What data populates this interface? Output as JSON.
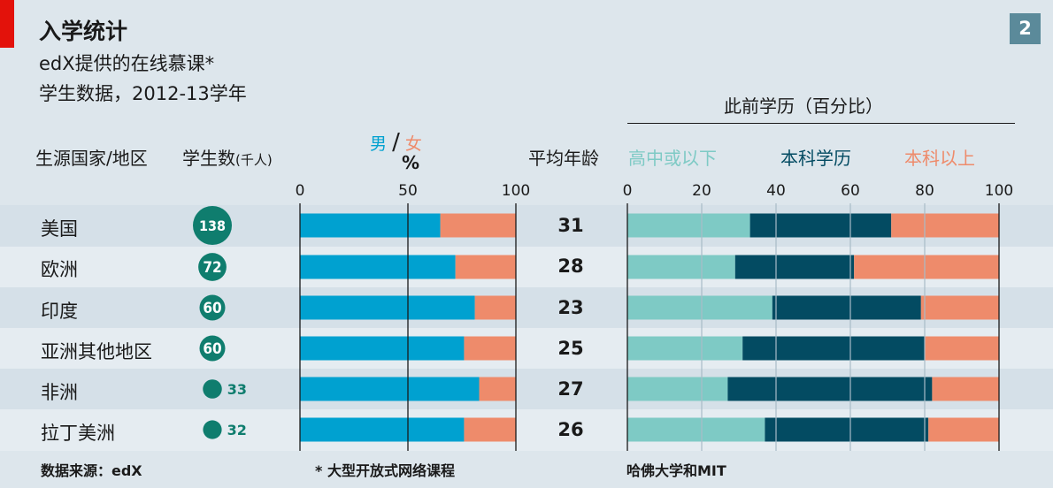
{
  "page_number": "2",
  "title": "入学统计",
  "subtitle": "edX提供的在线慕课*",
  "subtitle2": "学生数据，2012-13学年",
  "headers": {
    "country": "生源国家/地区",
    "students": "学生数",
    "students_unit": "(千人)",
    "male": "男",
    "slash": "/",
    "female": "女",
    "percent": "%",
    "avg_age": "平均年龄",
    "education_title": "此前学历（百分比）",
    "edu_low": "高中或以下",
    "edu_mid": "本科学历",
    "edu_high": "本科以上"
  },
  "footer": {
    "source": "数据来源：edX",
    "note": "* 大型开放式网络课程",
    "credit": "哈佛大学和MIT"
  },
  "colors": {
    "male": "#00a1d0",
    "female": "#ee8b6b",
    "edu_low": "#7ecac5",
    "edu_mid": "#034b62",
    "edu_high": "#ee8b6b",
    "bubble": "#0f7d6e",
    "accent_red": "#e3120b"
  },
  "chart_data": {
    "type": "table",
    "rows": [
      {
        "country": "美国",
        "students": 138,
        "male_pct": 65,
        "female_pct": 35,
        "avg_age": 31,
        "edu": [
          33,
          38,
          29
        ]
      },
      {
        "country": "欧洲",
        "students": 72,
        "male_pct": 72,
        "female_pct": 28,
        "avg_age": 28,
        "edu": [
          29,
          32,
          39
        ]
      },
      {
        "country": "印度",
        "students": 60,
        "male_pct": 81,
        "female_pct": 19,
        "avg_age": 23,
        "edu": [
          39,
          40,
          21
        ]
      },
      {
        "country": "亚洲其他地区",
        "students": 60,
        "male_pct": 76,
        "female_pct": 24,
        "avg_age": 25,
        "edu": [
          31,
          49,
          20
        ]
      },
      {
        "country": "非洲",
        "students": 33,
        "male_pct": 83,
        "female_pct": 17,
        "avg_age": 27,
        "edu": [
          27,
          55,
          18
        ]
      },
      {
        "country": "拉丁美洲",
        "students": 32,
        "male_pct": 76,
        "female_pct": 24,
        "avg_age": 26,
        "edu": [
          37,
          44,
          19
        ]
      }
    ],
    "gender_axis": {
      "ticks": [
        0,
        50,
        100
      ],
      "range": [
        0,
        100
      ]
    },
    "education_axis": {
      "ticks": [
        0,
        20,
        40,
        60,
        80,
        100
      ],
      "range": [
        0,
        100
      ]
    }
  }
}
